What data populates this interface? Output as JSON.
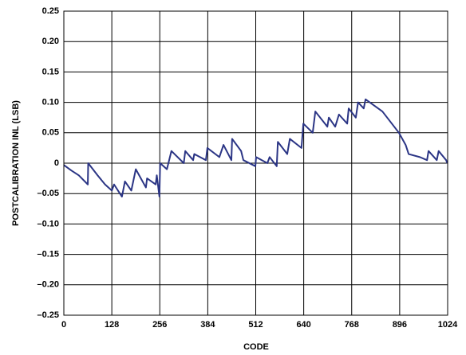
{
  "chart_data": {
    "type": "line",
    "xlabel": "CODE",
    "ylabel": "POSTCALIBRATION INL (LSB)",
    "xlim": [
      0,
      1024
    ],
    "ylim": [
      -0.25,
      0.25
    ],
    "xticks": [
      0,
      128,
      256,
      384,
      512,
      640,
      768,
      896,
      1024
    ],
    "yticks": [
      0.25,
      {
        "value": 0.2,
        "label": "0.20"
      },
      0.15,
      {
        "value": 0.1,
        "label": "0.10"
      },
      0.05,
      0,
      {
        "value": -0.05,
        "label": "–0.05"
      },
      {
        "value": -0.1,
        "label": "–0.10"
      },
      {
        "value": -0.15,
        "label": "–0.15"
      },
      {
        "value": -0.2,
        "label": "–0.20"
      },
      {
        "value": -0.25,
        "label": "–0.25"
      }
    ],
    "grid": true,
    "series": [
      {
        "color": "#2b3585",
        "x": [
          0,
          20,
          40,
          64,
          65,
          90,
          110,
          128,
          134,
          155,
          163,
          180,
          192,
          219,
          222,
          245,
          248,
          255,
          257,
          275,
          287,
          320,
          324,
          345,
          348,
          379,
          383,
          415,
          426,
          447,
          449,
          473,
          479,
          511,
          513,
          543,
          549,
          568,
          571,
          596,
          603,
          634,
          639,
          664,
          671,
          703,
          707,
          724,
          734,
          756,
          760,
          779,
          785,
          800,
          805,
          850,
          894,
          912,
          920,
          950,
          969,
          973,
          995,
          1000,
          1020,
          1023
        ],
        "values": [
          -0.003,
          -0.012,
          -0.02,
          -0.035,
          0.0,
          -0.02,
          -0.035,
          -0.045,
          -0.035,
          -0.055,
          -0.03,
          -0.045,
          -0.01,
          -0.04,
          -0.025,
          -0.035,
          -0.02,
          -0.055,
          0.0,
          -0.01,
          0.02,
          0.0,
          0.02,
          0.005,
          0.015,
          0.005,
          0.025,
          0.01,
          0.03,
          0.005,
          0.04,
          0.02,
          0.005,
          -0.005,
          0.01,
          0.0,
          0.01,
          -0.005,
          0.035,
          0.015,
          0.04,
          0.025,
          0.065,
          0.05,
          0.085,
          0.06,
          0.075,
          0.06,
          0.08,
          0.065,
          0.09,
          0.075,
          0.1,
          0.09,
          0.105,
          0.085,
          0.05,
          0.03,
          0.015,
          0.01,
          0.005,
          0.02,
          0.005,
          0.02,
          0.005,
          0.0
        ]
      }
    ]
  }
}
